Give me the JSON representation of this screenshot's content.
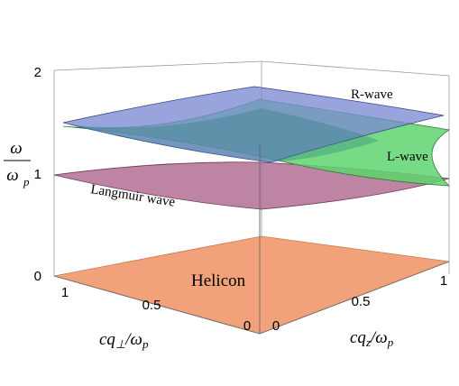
{
  "chart_data": {
    "type": "surface3d",
    "z_axis": {
      "ticks": [
        "0",
        "1",
        "2"
      ],
      "range": [
        0,
        2
      ],
      "label_num": "ω",
      "label_den": "ω",
      "label_den_sub": "p"
    },
    "x_axis": {
      "ticks": [
        "1",
        "0.5",
        "0"
      ],
      "label_main": "cq",
      "label_sub": "⊥",
      "label_tail": "/ω",
      "label_tail_sub": "p"
    },
    "y_axis": {
      "ticks": [
        "0",
        "0.5",
        "1"
      ],
      "label_main": "cq",
      "label_sub": "z",
      "label_tail": "/ω",
      "label_tail_sub": "p"
    },
    "surfaces": [
      {
        "name": "Helicon",
        "color": "#f2a27a",
        "z_at_origin": 0.0,
        "z_at_max": 0.05
      },
      {
        "name": "Langmuir wave",
        "color": "#b6779a",
        "z_at_origin": 1.0,
        "z_at_max": 1.12
      },
      {
        "name": "L-wave",
        "color": "#5fd36f",
        "z_at_origin": 1.0,
        "z_at_max": 1.5
      },
      {
        "name": "R-wave",
        "color": "#7c8ad2",
        "z_at_origin": 1.05,
        "z_at_max": 1.75
      }
    ]
  }
}
